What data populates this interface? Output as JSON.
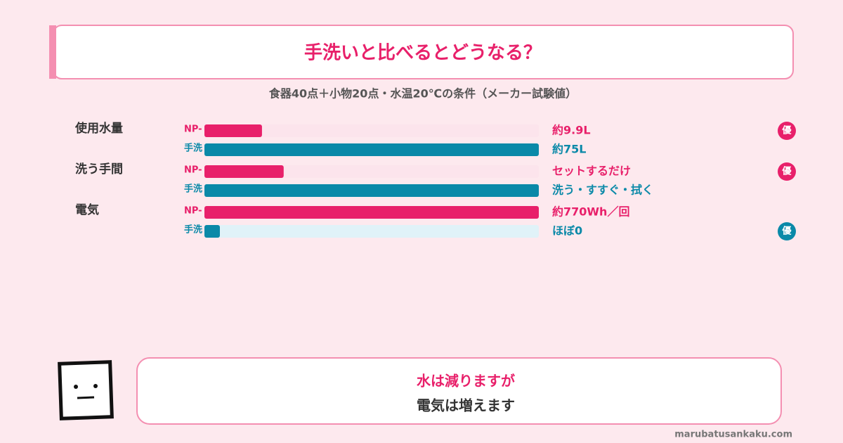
{
  "chart_data": {
    "type": "bar",
    "orientation": "horizontal",
    "title": "手洗いと比べるとどうなる？",
    "subtitle": "食器40点＋小物20点・水温20℃の条件（メーカー試験値）",
    "series": [
      {
        "name": "NP-",
        "color": "#e8206a",
        "track_color": "#fce4ec"
      },
      {
        "name": "手洗",
        "color": "#0a89a8",
        "track_color": "#e0f2f8"
      }
    ],
    "groups": [
      {
        "name": "使用水量",
        "xlim": [
          0,
          75
        ],
        "values": [
          9.9,
          75
        ],
        "value_labels": [
          "約9.9L",
          "約75L"
        ],
        "badge": "優",
        "badge_series": 0
      },
      {
        "name": "洗う手間",
        "xlim": [
          0,
          100
        ],
        "values": [
          20,
          100
        ],
        "value_labels": [
          "セットするだけ",
          "洗う・すすぐ・拭く"
        ],
        "badge": "優",
        "badge_series": 0
      },
      {
        "name": "電気",
        "xlim": [
          0,
          770
        ],
        "values": [
          770,
          0
        ],
        "value_labels": [
          "約770Wh／回",
          "ほぼ0"
        ],
        "badge": "優",
        "badge_series": 1
      }
    ],
    "note_lines": [
      "水は減りますが",
      "電気は増えます"
    ],
    "credit": "marubatusankaku.com"
  }
}
